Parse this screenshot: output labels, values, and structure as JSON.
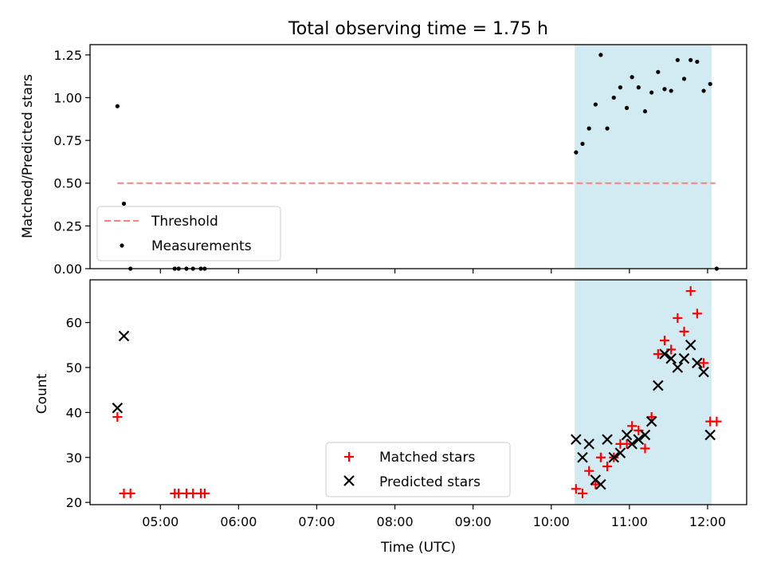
{
  "chart_data": [
    {
      "type": "scatter",
      "title": "Total observing time = 1.75 h",
      "ylabel": "Matched/Predicted stars",
      "xlabel": "",
      "xlim": [
        "04:06",
        "12:30"
      ],
      "ylim": [
        0,
        1.31
      ],
      "yticks": [
        "0.00",
        "0.25",
        "0.50",
        "0.75",
        "1.00",
        "1.25"
      ],
      "shaded_region": {
        "x": [
          "10:18",
          "12:03"
        ],
        "color": "#add8e6"
      },
      "threshold": {
        "name": "Threshold",
        "value": 0.5,
        "x": [
          "04:27",
          "12:06"
        ],
        "color": "#ff8080",
        "style": "dashed"
      },
      "legend_position": "lower left",
      "series": [
        {
          "name": "Measurements",
          "marker": "dot",
          "color": "#000000",
          "points": [
            [
              "04:27",
              0.95
            ],
            [
              "04:32",
              0.38
            ],
            [
              "04:37",
              0.0
            ],
            [
              "05:11",
              0.0
            ],
            [
              "05:14",
              0.0
            ],
            [
              "05:20",
              0.0
            ],
            [
              "05:25",
              0.0
            ],
            [
              "05:31",
              0.0
            ],
            [
              "05:34",
              0.0
            ],
            [
              "10:19",
              0.68
            ],
            [
              "10:24",
              0.73
            ],
            [
              "10:29",
              0.82
            ],
            [
              "10:34",
              0.96
            ],
            [
              "10:38",
              1.25
            ],
            [
              "10:43",
              0.82
            ],
            [
              "10:48",
              1.0
            ],
            [
              "10:53",
              1.06
            ],
            [
              "10:58",
              0.94
            ],
            [
              "11:02",
              1.12
            ],
            [
              "11:07",
              1.06
            ],
            [
              "11:12",
              0.92
            ],
            [
              "11:17",
              1.03
            ],
            [
              "11:22",
              1.15
            ],
            [
              "11:27",
              1.05
            ],
            [
              "11:32",
              1.04
            ],
            [
              "11:37",
              1.22
            ],
            [
              "11:42",
              1.11
            ],
            [
              "11:47",
              1.22
            ],
            [
              "11:52",
              1.21
            ],
            [
              "11:57",
              1.04
            ],
            [
              "12:02",
              1.08
            ],
            [
              "12:07",
              0.0
            ]
          ]
        }
      ]
    },
    {
      "type": "scatter",
      "title": "",
      "ylabel": "Count",
      "xlabel": "Time (UTC)",
      "xlim": [
        "04:06",
        "12:30"
      ],
      "ylim": [
        19.5,
        69.5
      ],
      "yticks": [
        "20",
        "30",
        "40",
        "50",
        "60"
      ],
      "xticks": [
        "05:00",
        "06:00",
        "07:00",
        "08:00",
        "09:00",
        "10:00",
        "11:00",
        "12:00"
      ],
      "shaded_region": {
        "x": [
          "10:18",
          "12:03"
        ],
        "color": "#add8e6"
      },
      "legend_position": "lower center",
      "series": [
        {
          "name": "Matched stars",
          "marker": "plus",
          "color": "#ff0000",
          "points": [
            [
              "04:27",
              39
            ],
            [
              "04:32",
              22
            ],
            [
              "04:37",
              22
            ],
            [
              "05:11",
              22
            ],
            [
              "05:14",
              22
            ],
            [
              "05:20",
              22
            ],
            [
              "05:25",
              22
            ],
            [
              "05:31",
              22
            ],
            [
              "05:34",
              22
            ],
            [
              "10:19",
              23
            ],
            [
              "10:24",
              22
            ],
            [
              "10:29",
              27
            ],
            [
              "10:34",
              24
            ],
            [
              "10:38",
              30
            ],
            [
              "10:43",
              28
            ],
            [
              "10:48",
              30
            ],
            [
              "10:53",
              33
            ],
            [
              "10:58",
              33
            ],
            [
              "11:02",
              37
            ],
            [
              "11:07",
              36
            ],
            [
              "11:12",
              32
            ],
            [
              "11:17",
              39
            ],
            [
              "11:22",
              53
            ],
            [
              "11:27",
              56
            ],
            [
              "11:32",
              54
            ],
            [
              "11:37",
              61
            ],
            [
              "11:42",
              58
            ],
            [
              "11:47",
              67
            ],
            [
              "11:52",
              62
            ],
            [
              "11:57",
              51
            ],
            [
              "12:02",
              38
            ],
            [
              "12:07",
              38
            ]
          ]
        },
        {
          "name": "Predicted stars",
          "marker": "x",
          "color": "#000000",
          "points": [
            [
              "04:27",
              41
            ],
            [
              "04:32",
              57
            ],
            [
              "10:19",
              34
            ],
            [
              "10:24",
              30
            ],
            [
              "10:29",
              33
            ],
            [
              "10:34",
              25
            ],
            [
              "10:38",
              24
            ],
            [
              "10:43",
              34
            ],
            [
              "10:48",
              30
            ],
            [
              "10:53",
              31
            ],
            [
              "10:58",
              35
            ],
            [
              "11:02",
              33
            ],
            [
              "11:07",
              34
            ],
            [
              "11:12",
              35
            ],
            [
              "11:17",
              38
            ],
            [
              "11:22",
              46
            ],
            [
              "11:27",
              53
            ],
            [
              "11:32",
              52
            ],
            [
              "11:37",
              50
            ],
            [
              "11:42",
              52
            ],
            [
              "11:47",
              55
            ],
            [
              "11:52",
              51
            ],
            [
              "11:57",
              49
            ],
            [
              "12:02",
              35
            ]
          ]
        }
      ]
    }
  ]
}
